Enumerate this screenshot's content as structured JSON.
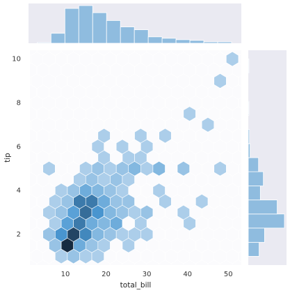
{
  "chart_data": {
    "type": "hexbin",
    "x_label": "total_bill",
    "y_label": "tip",
    "xlim": [
      1.3,
      53.2
    ],
    "ylim": [
      0.6,
      10.4
    ],
    "xticks": [
      10,
      20,
      30,
      40,
      50
    ],
    "yticks": [
      2,
      4,
      6,
      8,
      10
    ],
    "colormap": [
      "#f4f6fa",
      "#4a98d3",
      "#162b40"
    ],
    "cells": {
      "x": [
        9,
        12,
        15,
        18,
        7.5,
        10.5,
        13.5,
        16.5,
        19.5,
        25.5,
        6,
        9,
        12,
        15,
        18,
        21,
        24,
        27,
        30,
        7.5,
        10.5,
        13.5,
        16.5,
        19.5,
        22.5,
        28.5,
        40.5,
        6,
        9,
        12,
        15,
        18,
        21,
        24,
        27,
        30,
        39,
        7.5,
        10.5,
        13.5,
        16.5,
        19.5,
        22.5,
        25.5,
        34.5,
        43.5,
        9,
        12,
        15,
        18,
        21,
        24,
        33,
        13.5,
        16.5,
        19.5,
        22.5,
        25.5,
        6,
        15,
        18,
        21,
        24,
        27,
        30,
        33,
        39,
        48,
        19.5,
        25.5,
        28.5,
        18,
        24,
        30,
        19.5,
        28.5,
        34.5,
        45,
        40.5,
        48,
        51
      ],
      "y": [
        1,
        1,
        1,
        1,
        1.5,
        1.5,
        1.5,
        1.5,
        1.5,
        1.5,
        2,
        2,
        2,
        2,
        2,
        2,
        2,
        2,
        2,
        2.5,
        2.5,
        2.5,
        2.5,
        2.5,
        2.5,
        2.5,
        2.5,
        3,
        3,
        3,
        3,
        3,
        3,
        3,
        3,
        3,
        3,
        3.5,
        3.5,
        3.5,
        3.5,
        3.5,
        3.5,
        3.5,
        3.5,
        3.5,
        4,
        4,
        4,
        4,
        4,
        4,
        4,
        4.5,
        4.5,
        4.5,
        4.5,
        4.5,
        5,
        5,
        5,
        5,
        5,
        5,
        5,
        5,
        5,
        5,
        5.5,
        5.5,
        5.5,
        6,
        6,
        6,
        6.5,
        6.5,
        6.5,
        7,
        7.5,
        9,
        10
      ],
      "count": [
        1,
        2,
        1,
        1,
        2,
        14,
        4,
        2,
        1,
        1,
        2,
        6,
        12,
        7,
        3,
        2,
        1,
        1,
        1,
        1,
        5,
        8,
        4,
        3,
        4,
        1,
        1,
        1,
        2,
        5,
        9,
        6,
        3,
        2,
        1,
        2,
        1,
        1,
        2,
        8,
        8,
        4,
        2,
        2,
        1,
        1,
        1,
        2,
        4,
        3,
        2,
        1,
        1,
        1,
        2,
        1,
        2,
        1,
        1,
        1,
        2,
        1,
        2,
        3,
        1,
        3,
        2,
        1,
        1,
        1,
        1,
        1,
        1,
        1,
        1,
        1,
        1,
        1,
        1,
        1,
        1
      ]
    },
    "marginal_x": {
      "color": "#8fbcdf",
      "bins": [
        3.07,
        6.48,
        9.89,
        13.3,
        16.71,
        20.12,
        23.53,
        26.94,
        30.35,
        33.76,
        37.17,
        40.58,
        43.99,
        47.4,
        50.81
      ],
      "counts": [
        1,
        14,
        49,
        53,
        43,
        32,
        23,
        19,
        9,
        7,
        5,
        4,
        2,
        2
      ]
    },
    "marginal_y": {
      "color": "#8fbcdf",
      "bins": [
        1,
        1.64,
        2.29,
        2.93,
        3.57,
        4.21,
        4.86,
        5.5,
        6.14,
        6.79,
        7.43,
        8.07,
        8.71,
        9.36,
        10
      ],
      "counts": [
        18,
        27,
        60,
        48,
        20,
        25,
        17,
        3,
        2,
        0,
        1,
        0,
        0,
        1
      ]
    }
  }
}
